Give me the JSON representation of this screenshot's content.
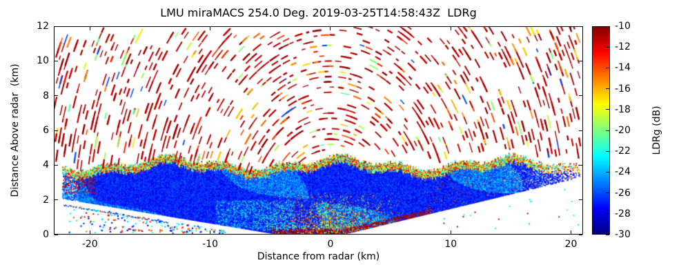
{
  "chart_data": {
    "type": "heatmap",
    "title": "LMU miraMACS 254.0 Deg. 2019-03-25T14:58:43Z  LDRg",
    "xlabel": "Distance from radar (km)",
    "ylabel": "Distance Above radar  (km)",
    "colorbar_label": "LDRg (dB)",
    "xlim": [
      -23,
      21
    ],
    "ylim": [
      0,
      12
    ],
    "x_ticks": [
      -20,
      -10,
      0,
      10,
      20
    ],
    "y_ticks": [
      0,
      2,
      4,
      6,
      8,
      10,
      12
    ],
    "grid": false,
    "colorbar": {
      "cmap": "jet",
      "vmin": -30,
      "vmax": -10,
      "ticks": [
        -10,
        -12,
        -14,
        -16,
        -18,
        -20,
        -22,
        -24,
        -26,
        -28,
        -30
      ],
      "position": "right"
    },
    "features": {
      "description": "RHI radar scan of linear depolarization ratio: low-level cloud/precipitation layer from -22 to 21 km extending up to ~4.5 km height, mostly -30 to -26 dB (blue) with a bright speckled top edge of -20 to -11 dB (green/yellow/red); high-LDR clutter mottle near the radar below 2.5 km; concentric arcs of receiver-noise speckle (~ -10 dB, dark red) above the cloud layer out to ~25 km range",
      "cloud_layer": {
        "x_range_km": [
          -22.3,
          20.8
        ],
        "top_height_km": 4.2,
        "top_height_variation_km": 0.45,
        "interior_value_db": -28,
        "bright_band_values_db": [
          -21,
          -10
        ],
        "left_bottom_slope": 0.115,
        "right_bottom_slope": 0.167
      },
      "clutter_patch": {
        "x_range_km": [
          -6.5,
          6.5
        ],
        "y_max_km": 2.5,
        "values_db": [
          -23,
          -10
        ]
      },
      "noise_arcs": {
        "range_min_km": 4.9,
        "range_max_km": 25.3,
        "ring_step_km": 0.3,
        "dominant_value_db": -10.5
      },
      "seed": 1337
    }
  }
}
